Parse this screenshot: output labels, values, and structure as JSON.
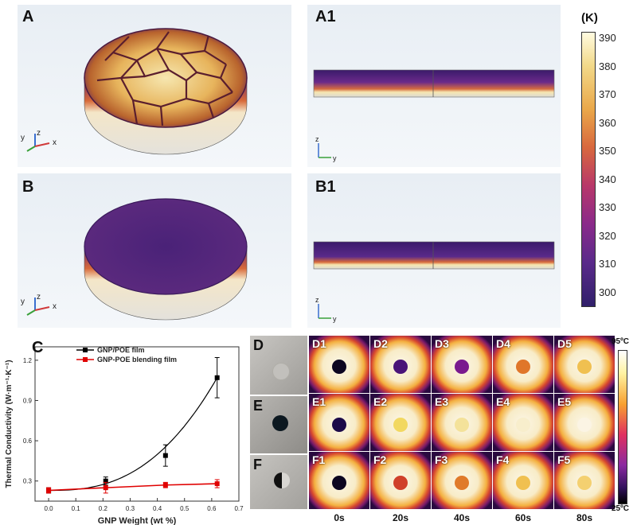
{
  "panels": {
    "a": "A",
    "a1": "A1",
    "b": "B",
    "b1": "B1",
    "c": "C",
    "d": "D",
    "e": "E",
    "f": "F"
  },
  "axis_triad": {
    "y": "y",
    "z": "z",
    "x": "x"
  },
  "colorbar": {
    "unit": "(K)",
    "ticks": [
      "390",
      "380",
      "370",
      "360",
      "350",
      "340",
      "330",
      "320",
      "310",
      "300"
    ]
  },
  "ir_scale": {
    "max": "95ºC",
    "min": "25ºC"
  },
  "ir_grid": {
    "rows": [
      {
        "row": "D",
        "tiles": [
          "D1",
          "D2",
          "D3",
          "D4",
          "D5"
        ],
        "spot_colors": [
          "#0c0620",
          "#4a1478",
          "#7a1a8e",
          "#e0762a",
          "#f0c050"
        ]
      },
      {
        "row": "E",
        "tiles": [
          "E1",
          "E2",
          "E3",
          "E4",
          "E5"
        ],
        "spot_colors": [
          "#1c0a48",
          "#f2d860",
          "#f4e29a",
          "#f8eecc",
          "#fbf4e4"
        ]
      },
      {
        "row": "F",
        "tiles": [
          "F1",
          "F2",
          "F3",
          "F4",
          "F5"
        ],
        "spot_colors": [
          "#0c0620",
          "#d0402a",
          "#e07a2a",
          "#f0c050",
          "#f4d070"
        ]
      }
    ],
    "times": [
      "0s",
      "20s",
      "40s",
      "60s",
      "80s"
    ]
  },
  "chart_data": {
    "type": "line",
    "xlabel": "GNP Weight (wt %)",
    "ylabel": "Thermal Conductivity (W·m⁻¹·K⁻¹)",
    "xlim": [
      -0.05,
      0.7
    ],
    "ylim": [
      0.15,
      1.3
    ],
    "xticks": [
      "0.0",
      "0.1",
      "0.2",
      "0.3",
      "0.4",
      "0.5",
      "0.6",
      "0.7"
    ],
    "yticks": [
      "0.3",
      "0.6",
      "0.9",
      "1.2"
    ],
    "legend_position": "top",
    "series": [
      {
        "name": "GNP/POE film",
        "color": "#000000",
        "marker": "square",
        "x": [
          0.0,
          0.21,
          0.43,
          0.62
        ],
        "y": [
          0.23,
          0.3,
          0.49,
          1.07
        ],
        "err": [
          0.02,
          0.03,
          0.08,
          0.15
        ]
      },
      {
        "name": "GNP-POE blending film",
        "color": "#e00000",
        "marker": "square",
        "x": [
          0.0,
          0.21,
          0.43,
          0.62
        ],
        "y": [
          0.23,
          0.25,
          0.27,
          0.28
        ],
        "err": [
          0.02,
          0.04,
          0.02,
          0.03
        ]
      }
    ]
  }
}
